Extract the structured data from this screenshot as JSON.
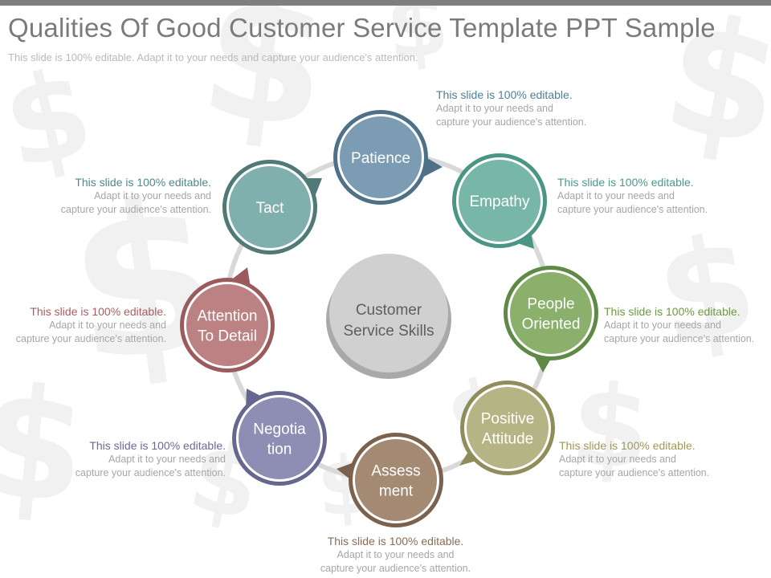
{
  "header": {
    "title": "Qualities Of Good Customer Service Template PPT Sample",
    "subtitle": "This slide is 100% editable. Adapt it to your needs and capture your audience's attention."
  },
  "center": {
    "line1": "Customer",
    "line2": "Service Skills"
  },
  "colors": {
    "ring": "#d9d9d9",
    "center_fill": "#d0d0d0",
    "center_edge": "#a9a9a9",
    "text_body": "#a6a6a6",
    "watermark": "#f1f1f1"
  },
  "nodes": [
    {
      "id": "patience",
      "lines": [
        "Patience"
      ],
      "fill": "#7b9cb3",
      "border": "#4f7187",
      "accent": "#4f7f98"
    },
    {
      "id": "empathy",
      "lines": [
        "Empathy"
      ],
      "fill": "#78b6a7",
      "border": "#4a9584",
      "accent": "#4a9a8a"
    },
    {
      "id": "people",
      "lines": [
        "People",
        "Oriented"
      ],
      "fill": "#8ab06c",
      "border": "#5f8a45",
      "accent": "#6c9a40"
    },
    {
      "id": "positive",
      "lines": [
        "Positive",
        "Attitude"
      ],
      "fill": "#b5b484",
      "border": "#8f8d5a",
      "accent": "#9d9a58"
    },
    {
      "id": "assess",
      "lines": [
        "Assess",
        "ment"
      ],
      "fill": "#a48a73",
      "border": "#7b624e",
      "accent": "#8b6c54"
    },
    {
      "id": "negot",
      "lines": [
        "Negotia",
        "tion"
      ],
      "fill": "#8e8eb5",
      "border": "#66668f",
      "accent": "#6a6a98"
    },
    {
      "id": "attention",
      "lines": [
        "Attention",
        "To Detail"
      ],
      "fill": "#bc8182",
      "border": "#9b5b5c",
      "accent": "#a85e61"
    },
    {
      "id": "tact",
      "lines": [
        "Tact"
      ],
      "fill": "#7fb0ae",
      "border": "#4f7a78",
      "accent": "#4d8a88"
    }
  ],
  "annotations": [
    {
      "id": "patience",
      "heading": "This slide is 100% editable.",
      "line2": "Adapt it to your needs and",
      "line3": "capture your audience's attention."
    },
    {
      "id": "empathy",
      "heading": "This slide is 100% editable.",
      "line2": "Adapt it to your needs and",
      "line3": "capture your audience's attention."
    },
    {
      "id": "people",
      "heading": "This slide is 100% editable.",
      "line2": "Adapt it to your needs and",
      "line3": "capture your audience's attention."
    },
    {
      "id": "positive",
      "heading": "This slide is 100% editable.",
      "line2": "Adapt it to your needs and",
      "line3": "capture your audience's attention."
    },
    {
      "id": "assess",
      "heading": "This slide is 100% editable.",
      "line2": "Adapt it to your needs and",
      "line3": "capture your audience's attention."
    },
    {
      "id": "negot",
      "heading": "This slide is 100% editable.",
      "line2": "Adapt it to your needs and",
      "line3": "capture your audience's attention."
    },
    {
      "id": "attention",
      "heading": "This slide is 100% editable.",
      "line2": "Adapt it to your needs and",
      "line3": "capture your audience's attention."
    },
    {
      "id": "tact",
      "heading": "This slide is 100% editable.",
      "line2": "Adapt it to your needs and",
      "line3": "capture your audience's attention."
    }
  ]
}
